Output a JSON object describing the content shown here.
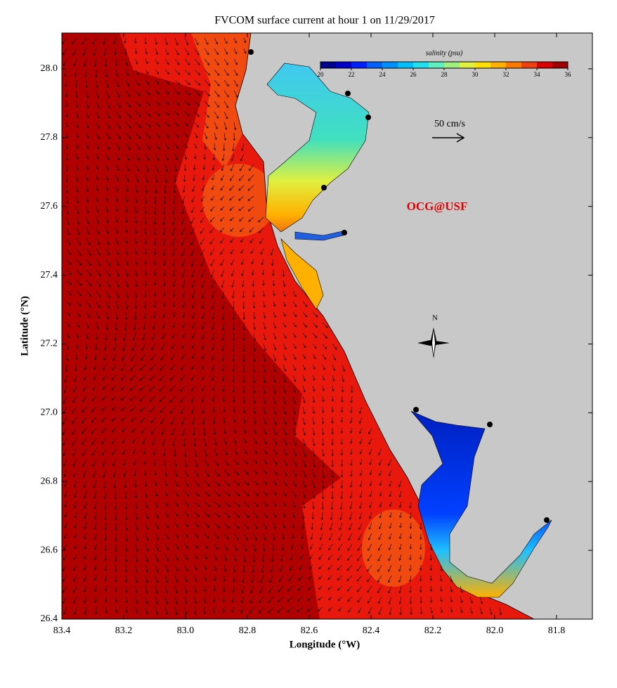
{
  "chart_data": {
    "type": "map",
    "title": "FVCOM surface current at hour 1 on 11/29/2017",
    "x_label": "Longitude (°W)",
    "y_label": "Latitude (°N)",
    "xlim": [
      83.4,
      81.684
    ],
    "ylim": [
      26.4,
      28.104
    ],
    "xticks": [
      83.4,
      83.2,
      {
        "value": 83,
        "label": "83.0"
      },
      82.8,
      82.6,
      82.4,
      82.2,
      {
        "value": 82,
        "label": "82.0"
      },
      81.8
    ],
    "yticks": [
      26.4,
      26.6,
      26.8,
      {
        "value": 27,
        "label": "27.0"
      },
      27.2,
      27.4,
      27.6,
      27.8,
      {
        "value": 28,
        "label": "28.0"
      }
    ],
    "colorbar": {
      "label": "salinity (psu)",
      "range": [
        20,
        36
      ],
      "ticks": [
        20,
        22,
        24,
        26,
        28,
        30,
        32,
        34,
        36
      ],
      "colors": [
        "#00008f",
        "#0000c8",
        "#0020ff",
        "#0060ff",
        "#0090ff",
        "#00c0ff",
        "#20e0f0",
        "#60f0c0",
        "#a0f080",
        "#e0f040",
        "#ffe000",
        "#ffb000",
        "#ff7800",
        "#f04010",
        "#d80000",
        "#a00000"
      ]
    },
    "scale_label": "50 cm/s",
    "watermark": "OCG@USF",
    "compass_label": "N"
  }
}
